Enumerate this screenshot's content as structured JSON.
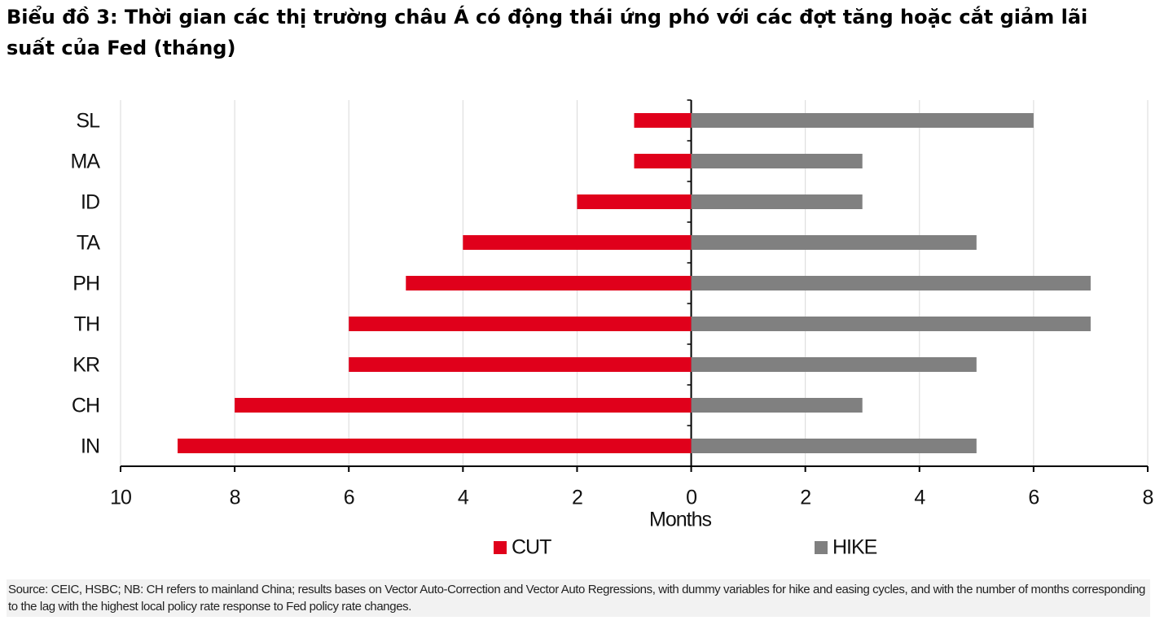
{
  "chart_data": {
    "type": "butterfly-bar",
    "title": "Biểu đồ 3: Thời gian các thị trường châu Á có động thái ứng phó với các đợt tăng hoặc cắt giảm lãi suất của Fed (tháng)",
    "x_label": "Months",
    "note": "Source: CEIC, HSBC; NB: CH refers to mainland China; results bases on Vector Auto-Correction and Vector Auto Regressions, with dummy variables for hike and easing cycles, and with the number of months corresponding to the lag with the highest local policy rate response to Fed policy rate changes.",
    "categories": [
      "SL",
      "MA",
      "ID",
      "TA",
      "PH",
      "TH",
      "KR",
      "CH",
      "IN"
    ],
    "series": [
      {
        "name": "CUT",
        "color": "#e0001b",
        "values": [
          -1,
          -1,
          -2,
          -4,
          -5,
          -6,
          -6,
          -8,
          -9
        ]
      },
      {
        "name": "HIKE",
        "color": "#808080",
        "values": [
          6,
          3,
          3,
          5,
          7,
          7,
          5,
          3,
          5
        ]
      }
    ],
    "xlim": [
      -10,
      8
    ],
    "xticks": [
      {
        "value": -10,
        "label": "10"
      },
      {
        "value": -8,
        "label": "8"
      },
      {
        "value": -6,
        "label": "6"
      },
      {
        "value": -4,
        "label": "4"
      },
      {
        "value": -2,
        "label": "2"
      },
      0,
      2,
      4,
      6,
      8
    ],
    "grid": true,
    "legend": "bottom"
  }
}
